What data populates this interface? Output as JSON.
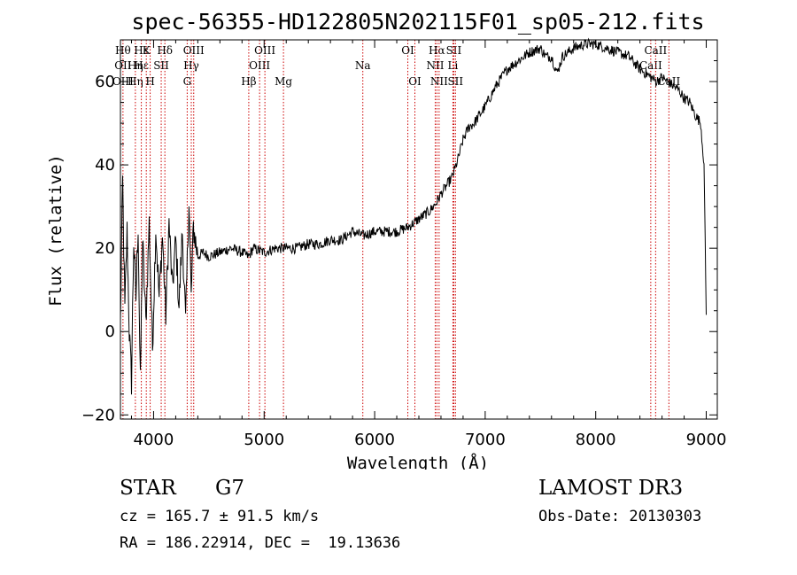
{
  "chart_data": {
    "type": "line",
    "title": "spec-56355-HD122805N202115F01_sp05-212.fits",
    "xlabel": "Wavelength (Å)",
    "ylabel": "Flux (relative)",
    "xlim": [
      3700,
      9100
    ],
    "ylim": [
      -21,
      70
    ],
    "xticks": [
      4000,
      5000,
      6000,
      7000,
      8000,
      9000
    ],
    "yticks": [
      -20,
      0,
      20,
      40,
      60
    ],
    "xtick_labels": [
      "4000",
      "5000",
      "6000",
      "7000",
      "8000",
      "9000"
    ],
    "ytick_labels": [
      "−20",
      "0",
      "20",
      "40",
      "60"
    ],
    "series": [
      {
        "name": "flux",
        "x": [
          3700,
          3720,
          3740,
          3760,
          3780,
          3800,
          3820,
          3840,
          3860,
          3880,
          3900,
          3930,
          3960,
          3990,
          4020,
          4050,
          4080,
          4110,
          4140,
          4170,
          4200,
          4230,
          4260,
          4290,
          4320,
          4340,
          4360,
          4400,
          4450,
          4500,
          4600,
          4700,
          4800,
          4860,
          4900,
          5000,
          5100,
          5200,
          5300,
          5400,
          5500,
          5600,
          5700,
          5800,
          5900,
          6000,
          6100,
          6200,
          6300,
          6400,
          6450,
          6500,
          6560,
          6600,
          6650,
          6700,
          6750,
          6800,
          6850,
          6900,
          6950,
          7000,
          7100,
          7200,
          7300,
          7400,
          7500,
          7550,
          7600,
          7650,
          7700,
          7800,
          7900,
          8000,
          8100,
          8200,
          8300,
          8400,
          8450,
          8500,
          8550,
          8600,
          8650,
          8700,
          8750,
          8800,
          8850,
          8900,
          8950,
          8980,
          9000
        ],
        "y": [
          2,
          36,
          5,
          24,
          0,
          -12,
          22,
          8,
          26,
          -13,
          22,
          2,
          26,
          -4,
          25,
          8,
          23,
          4,
          26,
          10,
          22,
          6,
          24,
          2,
          32,
          8,
          25,
          18,
          19,
          18,
          19,
          20,
          19,
          18,
          20,
          19,
          20,
          20,
          20,
          21,
          21,
          22,
          22,
          24,
          23,
          24,
          24,
          24,
          25,
          27,
          28,
          29,
          31,
          33,
          35,
          37,
          41,
          46,
          49,
          50,
          52,
          54,
          59,
          63,
          65,
          67,
          68,
          66,
          66,
          62,
          66,
          68,
          69,
          69,
          68,
          67,
          66,
          63,
          62,
          61,
          60,
          61,
          60,
          59,
          58,
          56,
          55,
          52,
          50,
          40,
          4
        ]
      }
    ],
    "line_markers": [
      {
        "w": 3723,
        "top": "Hθ",
        "mid": "OII",
        "low": "OIII"
      },
      {
        "w": 3835,
        "top": "",
        "mid": "Hη",
        "low": "Hη"
      },
      {
        "w": 3889,
        "top": "Hε",
        "mid": "Hε",
        "low": ""
      },
      {
        "w": 3934,
        "top": "K",
        "mid": "",
        "low": ""
      },
      {
        "w": 3969,
        "top": "",
        "mid": "",
        "low": "H"
      },
      {
        "w": 4069,
        "top": "",
        "mid": "SII",
        "low": ""
      },
      {
        "w": 4102,
        "top": "Hδ",
        "mid": "",
        "low": ""
      },
      {
        "w": 4304,
        "top": "",
        "mid": "",
        "low": "G"
      },
      {
        "w": 4341,
        "top": "",
        "mid": "Hγ",
        "low": ""
      },
      {
        "w": 4363,
        "top": "OIII",
        "mid": "",
        "low": ""
      },
      {
        "w": 4861,
        "top": "",
        "mid": "",
        "low": "Hβ"
      },
      {
        "w": 4959,
        "top": "",
        "mid": "OIII",
        "low": ""
      },
      {
        "w": 5007,
        "top": "OIII",
        "mid": "",
        "low": ""
      },
      {
        "w": 5175,
        "top": "",
        "mid": "",
        "low": "Mg"
      },
      {
        "w": 5893,
        "top": "",
        "mid": "Na",
        "low": ""
      },
      {
        "w": 6300,
        "top": "OI",
        "mid": "",
        "low": ""
      },
      {
        "w": 6364,
        "top": "",
        "mid": "",
        "low": "OI"
      },
      {
        "w": 6548,
        "top": "",
        "mid": "NII",
        "low": ""
      },
      {
        "w": 6563,
        "top": "Hα",
        "mid": "",
        "low": ""
      },
      {
        "w": 6583,
        "top": "",
        "mid": "",
        "low": "NII"
      },
      {
        "w": 6708,
        "top": "",
        "mid": "Li",
        "low": ""
      },
      {
        "w": 6716,
        "top": "SII",
        "mid": "",
        "low": ""
      },
      {
        "w": 6731,
        "top": "",
        "mid": "",
        "low": "SII"
      },
      {
        "w": 8498,
        "top": "",
        "mid": "CaII",
        "low": ""
      },
      {
        "w": 8542,
        "top": "CaII",
        "mid": "",
        "low": ""
      },
      {
        "w": 8662,
        "top": "",
        "mid": "",
        "low": "CaII"
      }
    ]
  },
  "info": {
    "object_type": "STAR",
    "subclass": "G7",
    "survey": "LAMOST DR3",
    "cz": "cz = 165.7 ± 91.5 km/s",
    "obs_date": "Obs-Date: 20130303",
    "coords": "RA = 186.22914, DEC =  19.13636"
  },
  "colors": {
    "line": "#000000",
    "marker": "#cc0000",
    "background": "#ffffff"
  }
}
